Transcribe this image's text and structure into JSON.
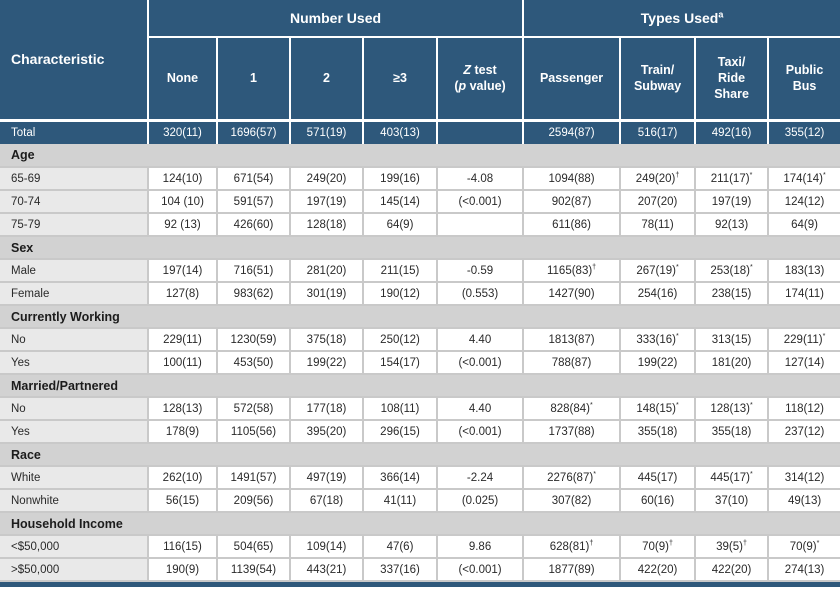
{
  "table": {
    "header": {
      "characteristic": "Characteristic",
      "groups": [
        {
          "key": "number-used",
          "label": "Number Used",
          "sup": "",
          "span": 5
        },
        {
          "key": "types-used",
          "label": "Types Used",
          "sup": "a",
          "span": 4
        }
      ],
      "columns": [
        {
          "key": "none",
          "lines": [
            "None"
          ]
        },
        {
          "key": "one",
          "lines": [
            "1"
          ]
        },
        {
          "key": "two",
          "lines": [
            "2"
          ]
        },
        {
          "key": "three-plus",
          "lines": [
            "≥3"
          ]
        },
        {
          "key": "z-test",
          "lines": [
            "Z test",
            "(p value)"
          ],
          "italic": true
        },
        {
          "key": "passenger",
          "lines": [
            "Passenger"
          ]
        },
        {
          "key": "train-subway",
          "lines": [
            "Train/",
            "Subway"
          ]
        },
        {
          "key": "taxi-ride-share",
          "lines": [
            "Taxi/",
            "Ride",
            "Share"
          ]
        },
        {
          "key": "public-bus",
          "lines": [
            "Public",
            "Bus"
          ]
        }
      ]
    },
    "total_row": {
      "label": "Total",
      "cells": [
        "320(11)",
        "1696(57)",
        "571(19)",
        "403(13)",
        "",
        "2594(87)",
        "516(17)",
        "492(16)",
        "355(12)"
      ]
    },
    "sections": [
      {
        "key": "age",
        "label": "Age",
        "rows": [
          {
            "label": "65-69",
            "cells": [
              "124(10)",
              "671(54)",
              "249(20)",
              "199(16)",
              "-4.08",
              "1094(88)",
              "249(20)†",
              "211(17)*",
              "174(14)*"
            ]
          },
          {
            "label": "70-74",
            "cells": [
              "104 (10)",
              "591(57)",
              "197(19)",
              "145(14)",
              "(<0.001)",
              "902(87)",
              "207(20)",
              "197(19)",
              "124(12)"
            ]
          },
          {
            "label": "75-79",
            "cells": [
              "92 (13)",
              "426(60)",
              "128(18)",
              "64(9)",
              "",
              "611(86)",
              "78(11)",
              "92(13)",
              "64(9)"
            ]
          }
        ]
      },
      {
        "key": "sex",
        "label": "Sex",
        "rows": [
          {
            "label": "Male",
            "cells": [
              "197(14)",
              "716(51)",
              "281(20)",
              "211(15)",
              "-0.59",
              "1165(83)†",
              "267(19)*",
              "253(18)*",
              "183(13)"
            ]
          },
          {
            "label": "Female",
            "cells": [
              "127(8)",
              "983(62)",
              "301(19)",
              "190(12)",
              "(0.553)",
              "1427(90)",
              "254(16)",
              "238(15)",
              "174(11)"
            ]
          }
        ]
      },
      {
        "key": "currently-working",
        "label": "Currently Working",
        "rows": [
          {
            "label": "No",
            "cells": [
              "229(11)",
              "1230(59)",
              "375(18)",
              "250(12)",
              "4.40",
              "1813(87)",
              "333(16)*",
              "313(15)",
              "229(11)*"
            ]
          },
          {
            "label": "Yes",
            "cells": [
              "100(11)",
              "453(50)",
              "199(22)",
              "154(17)",
              "(<0.001)",
              "788(87)",
              "199(22)",
              "181(20)",
              "127(14)"
            ]
          }
        ]
      },
      {
        "key": "married-partnered",
        "label": "Married/Partnered",
        "rows": [
          {
            "label": "No",
            "cells": [
              "128(13)",
              "572(58)",
              "177(18)",
              "108(11)",
              "4.40",
              "828(84)*",
              "148(15)*",
              "128(13)*",
              "118(12)"
            ]
          },
          {
            "label": "Yes",
            "cells": [
              "178(9)",
              "1105(56)",
              "395(20)",
              "296(15)",
              "(<0.001)",
              "1737(88)",
              "355(18)",
              "355(18)",
              "237(12)"
            ]
          }
        ]
      },
      {
        "key": "race",
        "label": "Race",
        "rows": [
          {
            "label": "White",
            "cells": [
              "262(10)",
              "1491(57)",
              "497(19)",
              "366(14)",
              "-2.24",
              "2276(87)*",
              "445(17)",
              "445(17)*",
              "314(12)"
            ]
          },
          {
            "label": "Nonwhite",
            "cells": [
              "56(15)",
              "209(56)",
              "67(18)",
              "41(11)",
              "(0.025)",
              "307(82)",
              "60(16)",
              "37(10)",
              "49(13)"
            ]
          }
        ]
      },
      {
        "key": "household-income",
        "label": "Household Income",
        "rows": [
          {
            "label": "<$50,000",
            "cells": [
              "116(15)",
              "504(65)",
              "109(14)",
              "47(6)",
              "9.86",
              "628(81)†",
              "70(9)†",
              "39(5)†",
              "70(9)*"
            ]
          },
          {
            "label": ">$50,000",
            "cells": [
              "190(9)",
              "1139(54)",
              "443(21)",
              "337(16)",
              "(<0.001)",
              "1877(89)",
              "422(20)",
              "422(20)",
              "274(13)"
            ]
          }
        ]
      }
    ],
    "colors": {
      "header_blue": "#2E587B",
      "section_gray": "#D2D2D2",
      "label_gray": "#E9E9E9",
      "separator_gray": "#C9C9C9",
      "cell_white": "#FFFFFF"
    }
  }
}
